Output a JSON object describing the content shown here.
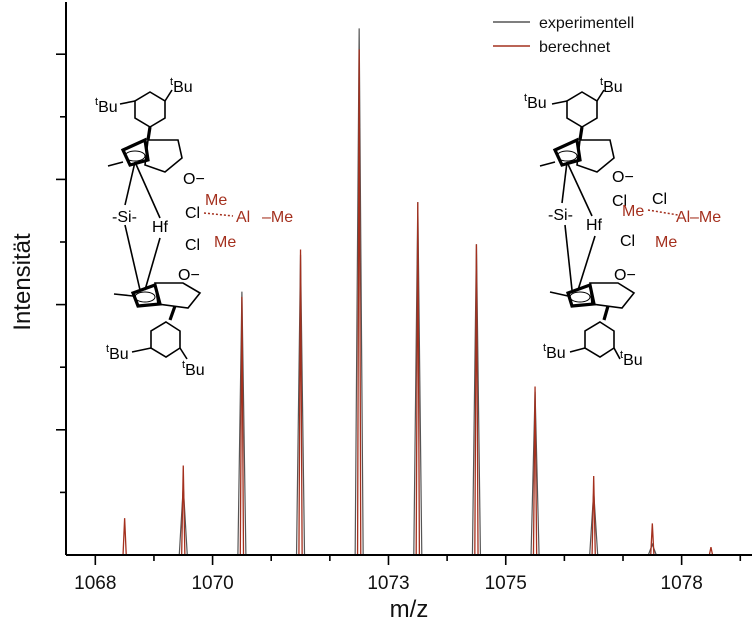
{
  "chart_data": {
    "type": "line",
    "title": "",
    "xlabel": "m/z",
    "ylabel": "Intensität",
    "xlim": [
      1067.5,
      1079.2
    ],
    "ylim": [
      0,
      1.05
    ],
    "x_ticks": [
      1068,
      1070,
      1073,
      1075,
      1078
    ],
    "x_tick_labels": [
      "1068",
      "1070",
      "1073",
      "1075",
      "1078"
    ],
    "x_minor_ticks": [
      1069,
      1071,
      1072,
      1074,
      1076,
      1077,
      1079
    ],
    "grid": false,
    "legend_position": "top-right",
    "series": [
      {
        "name": "experimentell",
        "color": "#555555",
        "peaks": [
          {
            "x": 1069.5,
            "y": 0.13
          },
          {
            "x": 1070.5,
            "y": 0.5
          },
          {
            "x": 1071.5,
            "y": 0.57
          },
          {
            "x": 1072.5,
            "y": 1.0
          },
          {
            "x": 1073.5,
            "y": 0.67
          },
          {
            "x": 1074.5,
            "y": 0.59
          },
          {
            "x": 1075.5,
            "y": 0.31
          },
          {
            "x": 1076.5,
            "y": 0.12
          },
          {
            "x": 1077.5,
            "y": 0.02
          }
        ]
      },
      {
        "name": "berechnet",
        "color": "#a4301e",
        "peaks": [
          {
            "x": 1068.5,
            "y": 0.07
          },
          {
            "x": 1069.5,
            "y": 0.17
          },
          {
            "x": 1070.5,
            "y": 0.49
          },
          {
            "x": 1071.5,
            "y": 0.58
          },
          {
            "x": 1072.5,
            "y": 0.96
          },
          {
            "x": 1073.5,
            "y": 0.67
          },
          {
            "x": 1074.5,
            "y": 0.59
          },
          {
            "x": 1075.5,
            "y": 0.32
          },
          {
            "x": 1076.5,
            "y": 0.15
          },
          {
            "x": 1077.5,
            "y": 0.06
          },
          {
            "x": 1078.5,
            "y": 0.015
          }
        ]
      }
    ]
  },
  "structures": {
    "left": {
      "tbu_top_left": "Bu",
      "tbu_top_right": "Bu",
      "t_mark": "t",
      "o_minus_top": "O−",
      "si": "Si",
      "hf": "Hf",
      "cl_top": "Cl",
      "cl_bottom": "Cl",
      "me_top": "Me",
      "al": "Al",
      "me_right": "Me",
      "me_bottom": "Me",
      "o_minus_bottom": "O−",
      "tbu_bottom_left": "Bu",
      "tbu_bottom_right": "Bu"
    },
    "right": {
      "tbu_top_left": "Bu",
      "tbu_top_right": "Bu",
      "o_minus_top": "O−",
      "si": "Si",
      "hf": "Hf",
      "cl_top": "Cl",
      "cl_bottom": "Cl",
      "me_left": "Me",
      "al": "Al",
      "me_right": "Me",
      "me_bottom": "Me",
      "o_minus_bottom": "O−",
      "tbu_bottom_left": "Bu",
      "tbu_bottom_right": "Bu"
    }
  }
}
